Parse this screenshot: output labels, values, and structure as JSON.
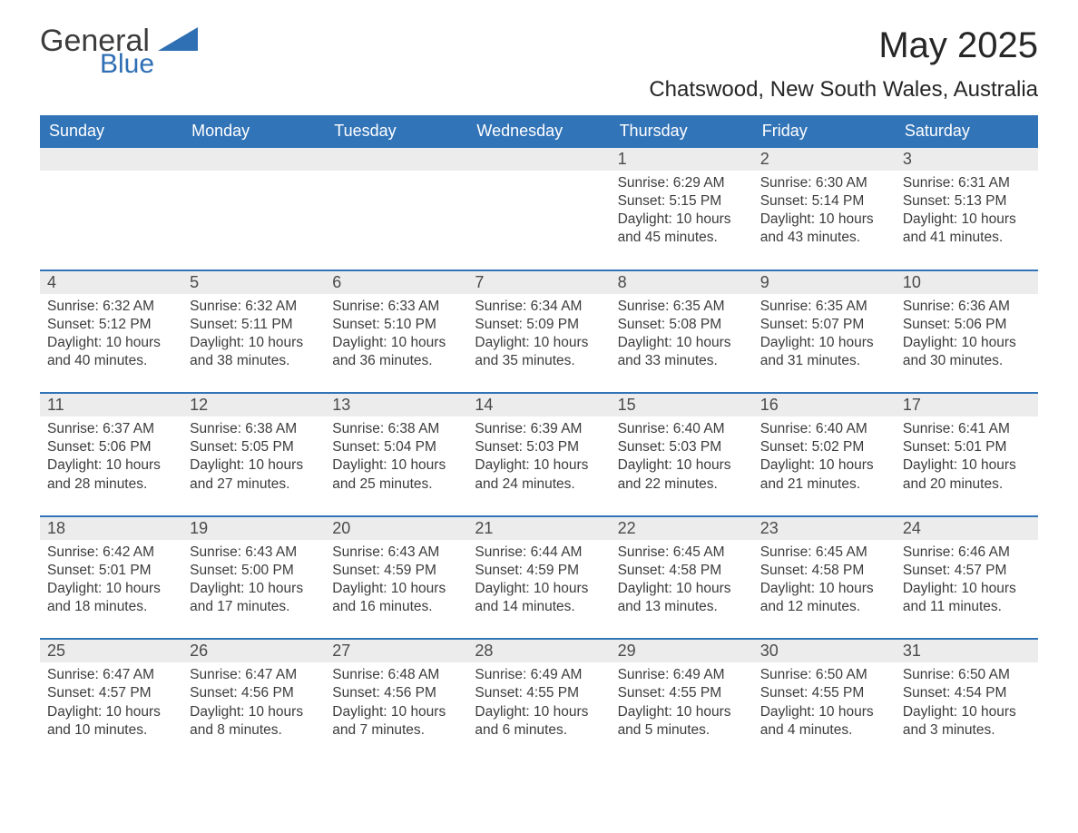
{
  "logo": {
    "text_main": "General",
    "text_sub": "Blue",
    "main_color": "#3c3c3c",
    "sub_color": "#2f6fb4",
    "shape_color": "#2f6fb4"
  },
  "title": "May 2025",
  "location": "Chatswood, New South Wales, Australia",
  "colors": {
    "header_bg": "#3274b8",
    "header_text": "#ffffff",
    "daynum_bg": "#ececec",
    "daynum_text": "#4a4a4a",
    "body_text": "#3c3c3c",
    "week_border": "#3274b8",
    "page_bg": "#ffffff"
  },
  "days_of_week": [
    "Sunday",
    "Monday",
    "Tuesday",
    "Wednesday",
    "Thursday",
    "Friday",
    "Saturday"
  ],
  "labels": {
    "sunrise": "Sunrise:",
    "sunset": "Sunset:",
    "daylight": "Daylight:"
  },
  "weeks": [
    [
      null,
      null,
      null,
      null,
      {
        "n": "1",
        "sunrise": "6:29 AM",
        "sunset": "5:15 PM",
        "daylight": "10 hours and 45 minutes."
      },
      {
        "n": "2",
        "sunrise": "6:30 AM",
        "sunset": "5:14 PM",
        "daylight": "10 hours and 43 minutes."
      },
      {
        "n": "3",
        "sunrise": "6:31 AM",
        "sunset": "5:13 PM",
        "daylight": "10 hours and 41 minutes."
      }
    ],
    [
      {
        "n": "4",
        "sunrise": "6:32 AM",
        "sunset": "5:12 PM",
        "daylight": "10 hours and 40 minutes."
      },
      {
        "n": "5",
        "sunrise": "6:32 AM",
        "sunset": "5:11 PM",
        "daylight": "10 hours and 38 minutes."
      },
      {
        "n": "6",
        "sunrise": "6:33 AM",
        "sunset": "5:10 PM",
        "daylight": "10 hours and 36 minutes."
      },
      {
        "n": "7",
        "sunrise": "6:34 AM",
        "sunset": "5:09 PM",
        "daylight": "10 hours and 35 minutes."
      },
      {
        "n": "8",
        "sunrise": "6:35 AM",
        "sunset": "5:08 PM",
        "daylight": "10 hours and 33 minutes."
      },
      {
        "n": "9",
        "sunrise": "6:35 AM",
        "sunset": "5:07 PM",
        "daylight": "10 hours and 31 minutes."
      },
      {
        "n": "10",
        "sunrise": "6:36 AM",
        "sunset": "5:06 PM",
        "daylight": "10 hours and 30 minutes."
      }
    ],
    [
      {
        "n": "11",
        "sunrise": "6:37 AM",
        "sunset": "5:06 PM",
        "daylight": "10 hours and 28 minutes."
      },
      {
        "n": "12",
        "sunrise": "6:38 AM",
        "sunset": "5:05 PM",
        "daylight": "10 hours and 27 minutes."
      },
      {
        "n": "13",
        "sunrise": "6:38 AM",
        "sunset": "5:04 PM",
        "daylight": "10 hours and 25 minutes."
      },
      {
        "n": "14",
        "sunrise": "6:39 AM",
        "sunset": "5:03 PM",
        "daylight": "10 hours and 24 minutes."
      },
      {
        "n": "15",
        "sunrise": "6:40 AM",
        "sunset": "5:03 PM",
        "daylight": "10 hours and 22 minutes."
      },
      {
        "n": "16",
        "sunrise": "6:40 AM",
        "sunset": "5:02 PM",
        "daylight": "10 hours and 21 minutes."
      },
      {
        "n": "17",
        "sunrise": "6:41 AM",
        "sunset": "5:01 PM",
        "daylight": "10 hours and 20 minutes."
      }
    ],
    [
      {
        "n": "18",
        "sunrise": "6:42 AM",
        "sunset": "5:01 PM",
        "daylight": "10 hours and 18 minutes."
      },
      {
        "n": "19",
        "sunrise": "6:43 AM",
        "sunset": "5:00 PM",
        "daylight": "10 hours and 17 minutes."
      },
      {
        "n": "20",
        "sunrise": "6:43 AM",
        "sunset": "4:59 PM",
        "daylight": "10 hours and 16 minutes."
      },
      {
        "n": "21",
        "sunrise": "6:44 AM",
        "sunset": "4:59 PM",
        "daylight": "10 hours and 14 minutes."
      },
      {
        "n": "22",
        "sunrise": "6:45 AM",
        "sunset": "4:58 PM",
        "daylight": "10 hours and 13 minutes."
      },
      {
        "n": "23",
        "sunrise": "6:45 AM",
        "sunset": "4:58 PM",
        "daylight": "10 hours and 12 minutes."
      },
      {
        "n": "24",
        "sunrise": "6:46 AM",
        "sunset": "4:57 PM",
        "daylight": "10 hours and 11 minutes."
      }
    ],
    [
      {
        "n": "25",
        "sunrise": "6:47 AM",
        "sunset": "4:57 PM",
        "daylight": "10 hours and 10 minutes."
      },
      {
        "n": "26",
        "sunrise": "6:47 AM",
        "sunset": "4:56 PM",
        "daylight": "10 hours and 8 minutes."
      },
      {
        "n": "27",
        "sunrise": "6:48 AM",
        "sunset": "4:56 PM",
        "daylight": "10 hours and 7 minutes."
      },
      {
        "n": "28",
        "sunrise": "6:49 AM",
        "sunset": "4:55 PM",
        "daylight": "10 hours and 6 minutes."
      },
      {
        "n": "29",
        "sunrise": "6:49 AM",
        "sunset": "4:55 PM",
        "daylight": "10 hours and 5 minutes."
      },
      {
        "n": "30",
        "sunrise": "6:50 AM",
        "sunset": "4:55 PM",
        "daylight": "10 hours and 4 minutes."
      },
      {
        "n": "31",
        "sunrise": "6:50 AM",
        "sunset": "4:54 PM",
        "daylight": "10 hours and 3 minutes."
      }
    ]
  ]
}
